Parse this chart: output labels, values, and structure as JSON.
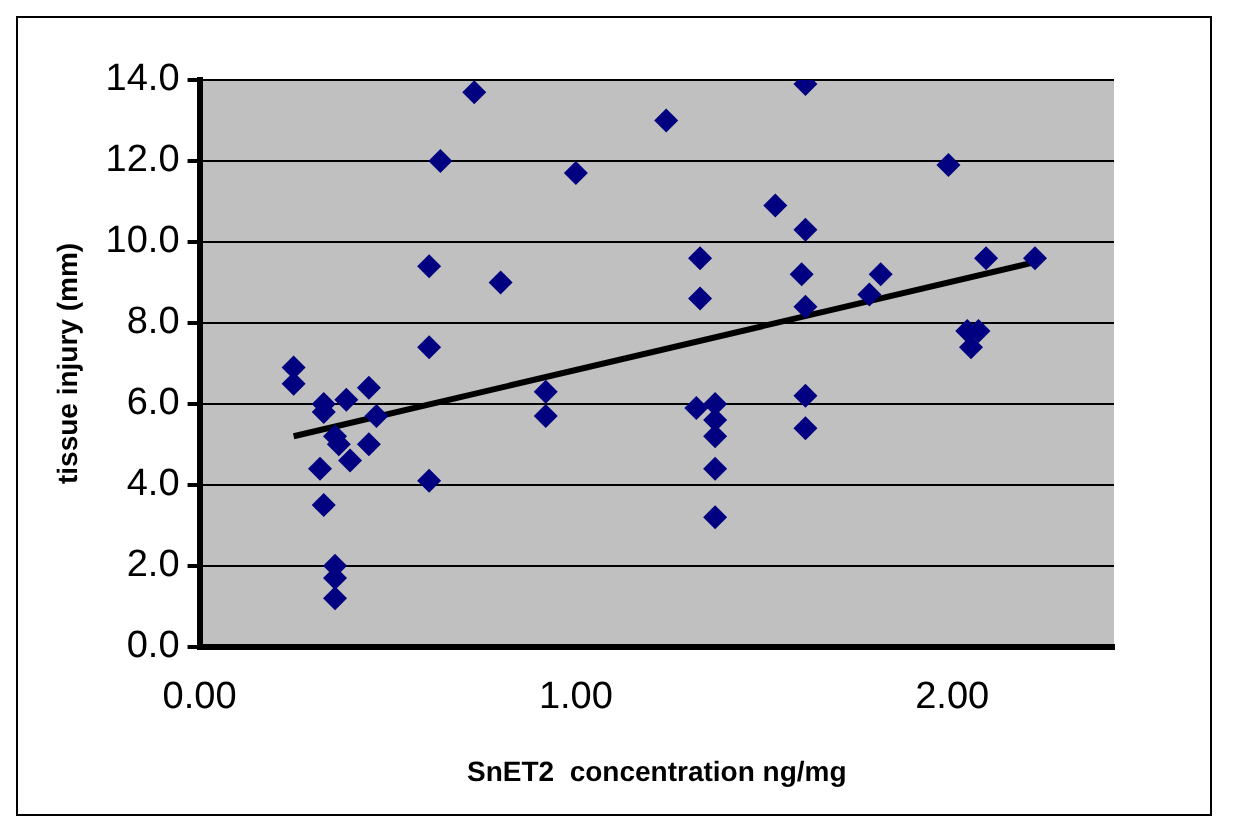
{
  "chart_data": {
    "type": "scatter",
    "xlabel": "SnET2  concentration ng/mg",
    "ylabel": "tissue injury (mm)",
    "xlim": [
      0,
      2.43
    ],
    "xticks": [
      {
        "value": 0,
        "label": "0.00"
      },
      {
        "value": 1,
        "label": "1.00"
      },
      {
        "value": 2,
        "label": "2.00"
      }
    ],
    "ylim": [
      0,
      14
    ],
    "yticks": [
      {
        "value": 0,
        "label": "0.0"
      },
      {
        "value": 2,
        "label": "2.0"
      },
      {
        "value": 4,
        "label": "4.0"
      },
      {
        "value": 6,
        "label": "6.0"
      },
      {
        "value": 8,
        "label": "8.0"
      },
      {
        "value": 10,
        "label": "10.0"
      },
      {
        "value": 12,
        "label": "12.0"
      },
      {
        "value": 14,
        "label": "14.0"
      }
    ],
    "grid": "y",
    "legend": false,
    "marker": "diamond",
    "series": [
      {
        "color": "#000080",
        "x": [
          0.25,
          0.25,
          0.33,
          0.33,
          0.39,
          0.45,
          0.47,
          0.36,
          0.37,
          0.45,
          0.4,
          0.32,
          0.33,
          0.36,
          0.36,
          0.36,
          0.61,
          0.61,
          0.61,
          0.64,
          0.73,
          0.8,
          0.92,
          0.92,
          1.0,
          1.61,
          1.24,
          1.99,
          1.53,
          1.61,
          1.33,
          2.09,
          2.22,
          1.6,
          1.81,
          1.78,
          1.33,
          1.61,
          2.04,
          2.07,
          2.05,
          1.32,
          1.37,
          1.37,
          1.37,
          1.37,
          1.37,
          1.61,
          1.61
        ],
        "values": [
          6.9,
          6.5,
          6.0,
          5.8,
          6.1,
          6.4,
          5.7,
          5.2,
          5.0,
          5.0,
          4.6,
          4.4,
          3.5,
          2.0,
          1.7,
          1.2,
          4.1,
          7.4,
          9.4,
          12.0,
          13.7,
          9.0,
          6.3,
          5.7,
          11.7,
          13.9,
          13.0,
          11.9,
          10.9,
          10.3,
          9.6,
          9.6,
          9.6,
          9.2,
          9.2,
          8.7,
          8.6,
          8.4,
          7.8,
          7.8,
          7.4,
          5.9,
          6.0,
          5.6,
          5.2,
          4.4,
          3.2,
          6.2,
          5.4
        ]
      },
      {
        "type": "line",
        "color": "#000000",
        "x": [
          0.25,
          2.22
        ],
        "values": [
          5.2,
          9.5
        ],
        "marker": "none"
      }
    ]
  }
}
